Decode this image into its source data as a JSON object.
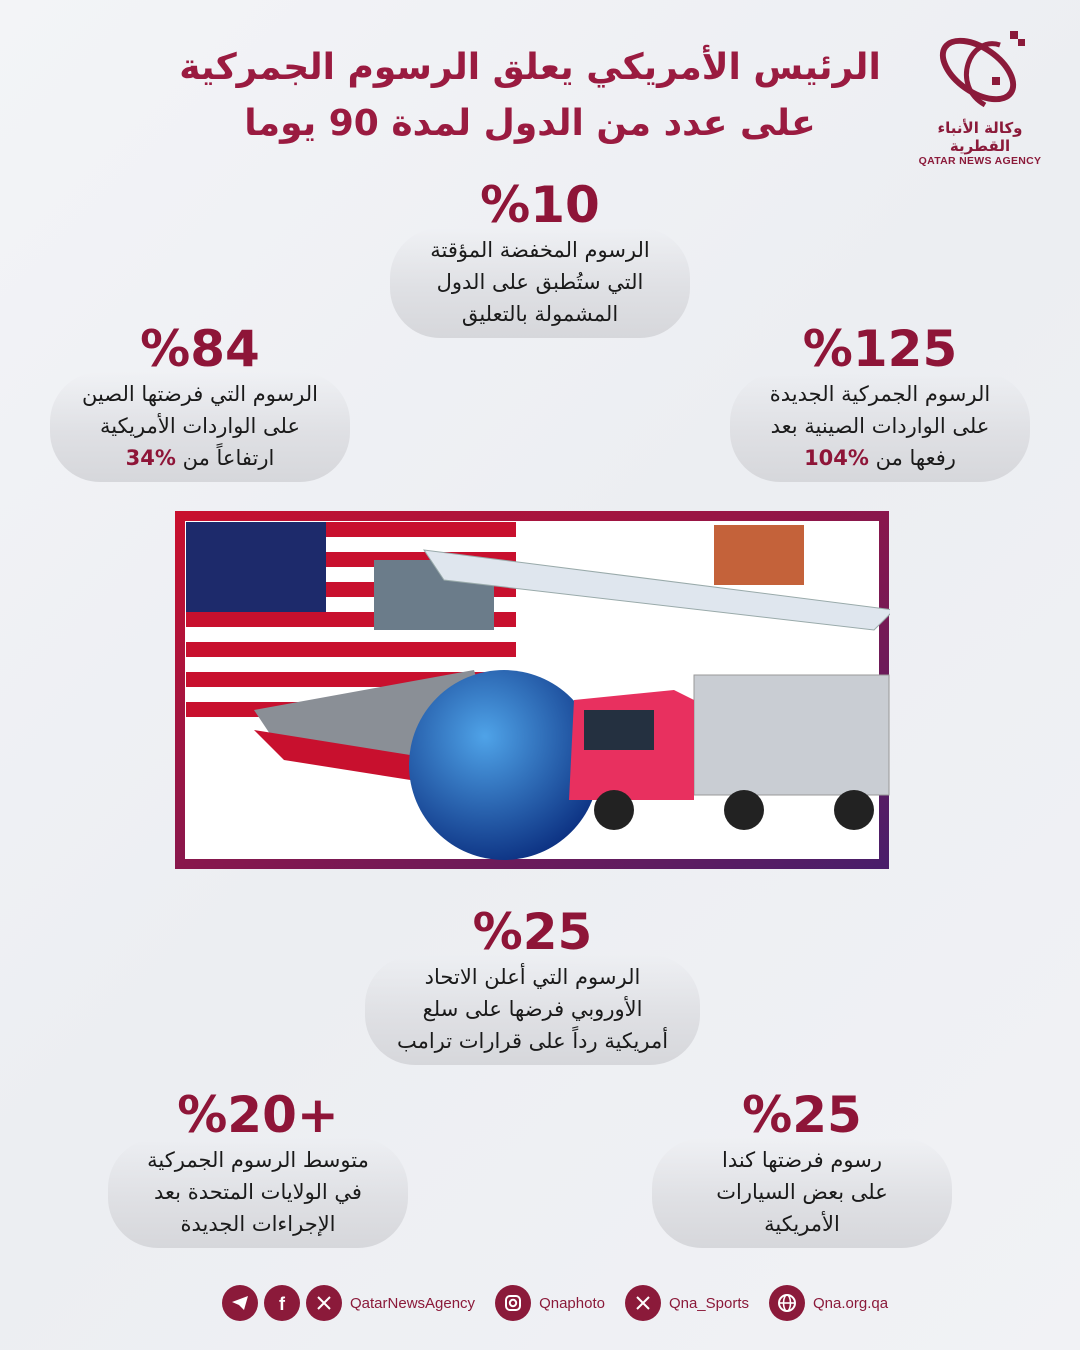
{
  "header": {
    "title_line1": "الرئيس الأمريكي يعلق الرسوم الجمركية",
    "title_line2": "على عدد من الدول لمدة 90 يوما"
  },
  "logo": {
    "arabic": "وكالة الأنباء القطرية",
    "english": "QATAR NEWS AGENCY"
  },
  "colors": {
    "accent": "#8e1538",
    "bubble": "#dcdde1",
    "frame_start": "#c8102e",
    "frame_end": "#4a1e6a"
  },
  "stats": [
    {
      "number": "%10",
      "lines": [
        "الرسوم المخفضة المؤقتة",
        "التي ستُطبق على الدول",
        "المشمولة بالتعليق"
      ]
    },
    {
      "number": "%84",
      "lines": [
        "الرسوم التي فرضتها الصين",
        "على الواردات الأمريكية"
      ],
      "last_text": "ارتفاعاً من ",
      "last_highlight": "%34"
    },
    {
      "number": "%125",
      "lines": [
        "الرسوم الجمركية الجديدة",
        "على الواردات الصينية بعد"
      ],
      "last_text": "رفعها من ",
      "last_highlight": "%104"
    },
    {
      "number": "%25",
      "lines": [
        "الرسوم التي أعلن الاتحاد",
        "الأوروبي فرضها على سلع",
        "أمريكية رداً على قرارات ترامب"
      ]
    },
    {
      "number": "%20+",
      "lines": [
        "متوسط الرسوم الجمركية",
        "في الولايات المتحدة بعد",
        "الإجراءات الجديدة"
      ]
    },
    {
      "number": "%25",
      "lines": [
        "رسوم فرضتها كندا",
        "على بعض السيارات",
        "الأمريكية"
      ]
    }
  ],
  "footer": [
    {
      "icons": [
        "telegram-icon",
        "facebook-icon",
        "x-icon"
      ],
      "label": "QatarNewsAgency"
    },
    {
      "icons": [
        "instagram-icon"
      ],
      "label": "Qnaphoto"
    },
    {
      "icons": [
        "x-icon"
      ],
      "label": "Qna_Sports"
    },
    {
      "icons": [
        "globe-icon"
      ],
      "label": "Qna.org.qa"
    }
  ]
}
